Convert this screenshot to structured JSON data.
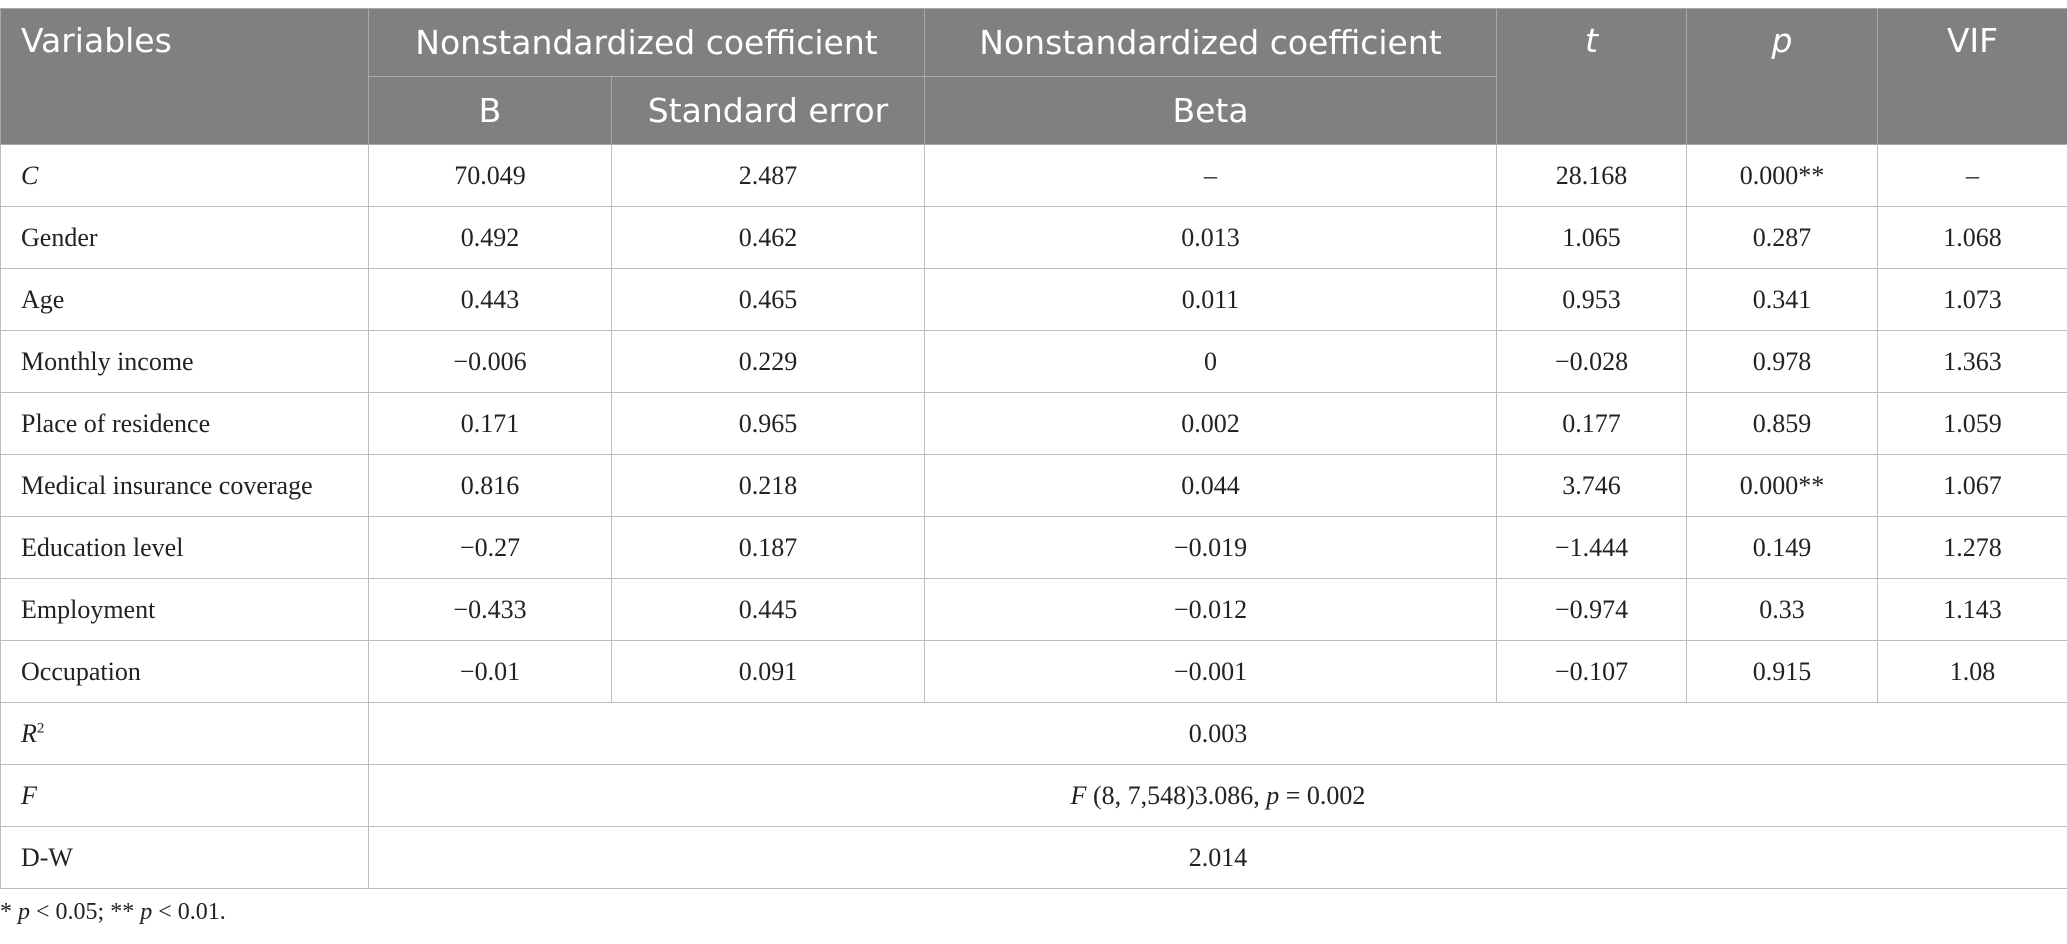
{
  "header": {
    "variables": "Variables",
    "group1": "Nonstandardized coefficient",
    "group2": "Nonstandardized coefficient",
    "t": "t",
    "p": "p",
    "vif": "VIF",
    "b": "B",
    "se": "Standard error",
    "beta": "Beta"
  },
  "rows": [
    {
      "var": "C",
      "b": "70.049",
      "se": "2.487",
      "beta": "–",
      "t": "28.168",
      "p": "0.000**",
      "vif": "–"
    },
    {
      "var": "Gender",
      "b": "0.492",
      "se": "0.462",
      "beta": "0.013",
      "t": "1.065",
      "p": "0.287",
      "vif": "1.068"
    },
    {
      "var": "Age",
      "b": "0.443",
      "se": "0.465",
      "beta": "0.011",
      "t": "0.953",
      "p": "0.341",
      "vif": "1.073"
    },
    {
      "var": "Monthly income",
      "b": "−0.006",
      "se": "0.229",
      "beta": "0",
      "t": "−0.028",
      "p": "0.978",
      "vif": "1.363"
    },
    {
      "var": "Place of residence",
      "b": "0.171",
      "se": "0.965",
      "beta": "0.002",
      "t": "0.177",
      "p": "0.859",
      "vif": "1.059"
    },
    {
      "var": "Medical insurance coverage",
      "b": "0.816",
      "se": "0.218",
      "beta": "0.044",
      "t": "3.746",
      "p": "0.000**",
      "vif": "1.067"
    },
    {
      "var": "Education level",
      "b": "−0.27",
      "se": "0.187",
      "beta": "−0.019",
      "t": "−1.444",
      "p": "0.149",
      "vif": "1.278"
    },
    {
      "var": "Employment",
      "b": "−0.433",
      "se": "0.445",
      "beta": "−0.012",
      "t": "−0.974",
      "p": "0.33",
      "vif": "1.143"
    },
    {
      "var": "Occupation",
      "b": "−0.01",
      "se": "0.091",
      "beta": "−0.001",
      "t": "−0.107",
      "p": "0.915",
      "vif": "1.08"
    }
  ],
  "summary": {
    "r2": {
      "label_base": "R",
      "label_sup": "2",
      "value": "0.003"
    },
    "f": {
      "label": "F",
      "value_f": "F",
      "value_args": " (8, 7,548)3.086, ",
      "value_p": "p",
      "value_tail": " = 0.002"
    },
    "dw": {
      "label": "D-W",
      "value": "2.014"
    }
  },
  "footnote": {
    "part1": "* ",
    "p1": "p",
    "part2": " < 0.05; ** ",
    "p2": "p",
    "part3": " < 0.01."
  }
}
